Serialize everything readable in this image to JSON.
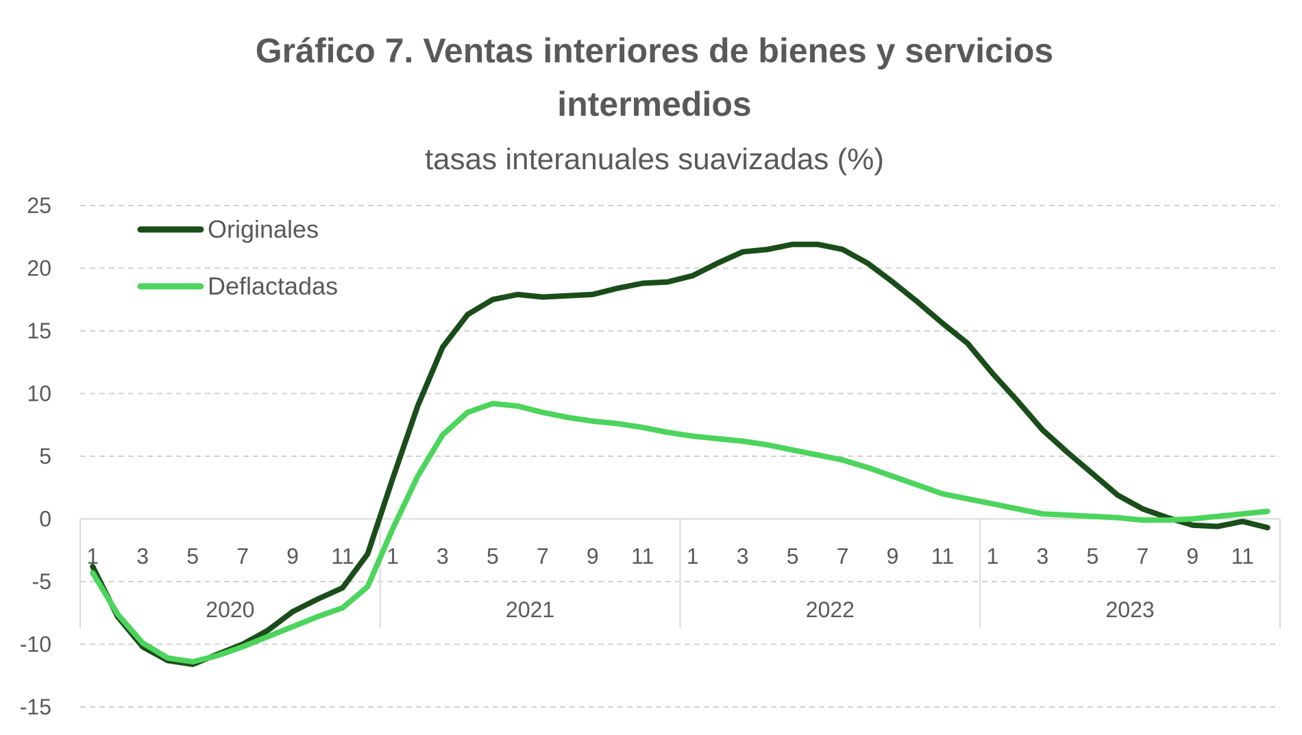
{
  "chart_data": {
    "type": "line",
    "title_line1": "Gráfico 7. Ventas interiores de bienes y servicios",
    "title_line2": "intermedios",
    "subtitle": "tasas interanuales suavizadas (%)",
    "ylim": [
      -15,
      25
    ],
    "y_ticks": [
      25,
      20,
      15,
      10,
      5,
      0,
      -5,
      -10,
      -15
    ],
    "y_tick_labels": [
      "25",
      "20",
      "15",
      "10",
      "5",
      "0",
      "-5",
      "-10",
      "-15"
    ],
    "years": [
      "2020",
      "2021",
      "2022",
      "2023"
    ],
    "month_tick_labels": [
      "1",
      "3",
      "5",
      "7",
      "9",
      "11"
    ],
    "legend_position": "top-left",
    "series": [
      {
        "name": "Originales",
        "color": "#1a4d1a",
        "values": [
          -3.8,
          -7.8,
          -10.2,
          -11.3,
          -11.6,
          -10.8,
          -10.0,
          -8.9,
          -7.4,
          -6.4,
          -5.5,
          -2.8,
          3.2,
          9.0,
          13.7,
          16.3,
          17.5,
          17.9,
          17.7,
          17.8,
          17.9,
          18.4,
          18.8,
          18.9,
          19.4,
          20.4,
          21.3,
          21.5,
          21.9,
          21.9,
          21.5,
          20.4,
          18.9,
          17.3,
          15.6,
          14.0,
          11.6,
          9.4,
          7.1,
          5.3,
          3.6,
          1.9,
          0.8,
          0.1,
          -0.5,
          -0.6,
          -0.2,
          -0.7
        ]
      },
      {
        "name": "Deflactadas",
        "color": "#4cd45c",
        "values": [
          -4.3,
          -7.6,
          -9.9,
          -11.1,
          -11.4,
          -10.9,
          -10.2,
          -9.4,
          -8.6,
          -7.8,
          -7.1,
          -5.4,
          -0.8,
          3.4,
          6.7,
          8.5,
          9.2,
          9.0,
          8.5,
          8.1,
          7.8,
          7.6,
          7.3,
          6.9,
          6.6,
          6.4,
          6.2,
          5.9,
          5.5,
          5.1,
          4.7,
          4.1,
          3.4,
          2.7,
          2.0,
          1.6,
          1.2,
          0.8,
          0.4,
          0.3,
          0.2,
          0.1,
          -0.1,
          -0.1,
          0.0,
          0.2,
          0.4,
          0.6
        ]
      }
    ]
  }
}
